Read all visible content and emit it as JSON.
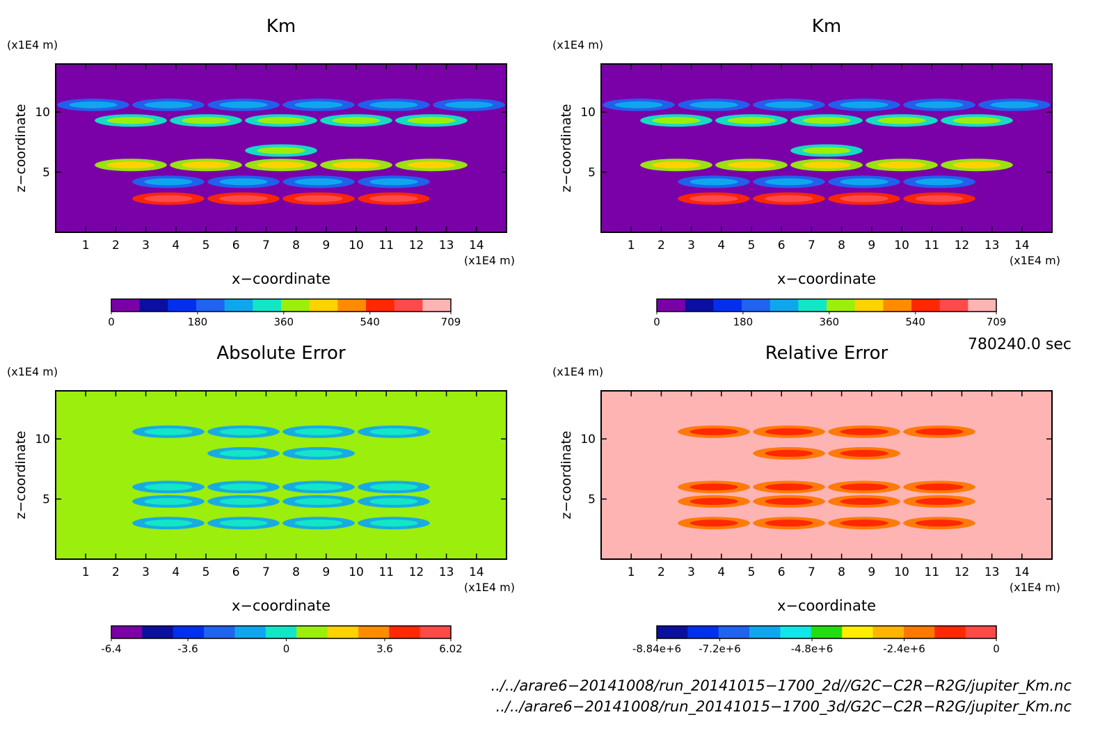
{
  "chart_data": [
    {
      "type": "heatmap",
      "title": "Km",
      "xlabel": "x−coordinate",
      "ylabel": "z−coordinate",
      "x_unit": "(x1E4 m)",
      "y_unit": "(x1E4 m)",
      "xlim": [
        0,
        15
      ],
      "ylim": [
        0,
        14
      ],
      "x_ticks": [
        1,
        2,
        3,
        4,
        5,
        6,
        7,
        8,
        9,
        10,
        11,
        12,
        13,
        14
      ],
      "y_ticks": [
        5,
        10
      ],
      "background": "#7a00a8",
      "bands": [
        {
          "z": 10.6,
          "level": 0.35,
          "coverage": 0.95
        },
        {
          "z": 9.3,
          "level": 0.55,
          "coverage": 0.85
        },
        {
          "z": 6.8,
          "level": 0.5,
          "coverage": 0.1
        },
        {
          "z": 5.6,
          "level": 0.6,
          "coverage": 0.8
        },
        {
          "z": 4.2,
          "level": 0.35,
          "coverage": 0.7
        },
        {
          "z": 2.8,
          "level": 0.9,
          "coverage": 0.6
        }
      ],
      "colorbar": {
        "ticks": [
          "0",
          "180",
          "360",
          "540",
          "709"
        ],
        "tick_values": [
          0,
          180,
          360,
          540,
          709
        ],
        "range": [
          0,
          709
        ],
        "colors": [
          "#7a00a8",
          "#0a0fa0",
          "#0030ee",
          "#1e64ee",
          "#10a6ee",
          "#12e6c6",
          "#9cee0c",
          "#ffd200",
          "#ff8c00",
          "#ff2800",
          "#ff4a4a",
          "#ffb4b4"
        ]
      }
    },
    {
      "type": "heatmap",
      "title": "Km",
      "xlabel": "x−coordinate",
      "ylabel": "z−coordinate",
      "x_unit": "(x1E4 m)",
      "y_unit": "(x1E4 m)",
      "xlim": [
        0,
        15
      ],
      "ylim": [
        0,
        14
      ],
      "x_ticks": [
        1,
        2,
        3,
        4,
        5,
        6,
        7,
        8,
        9,
        10,
        11,
        12,
        13,
        14
      ],
      "y_ticks": [
        5,
        10
      ],
      "background": "#7a00a8",
      "bands": [
        {
          "z": 10.6,
          "level": 0.35,
          "coverage": 0.95
        },
        {
          "z": 9.3,
          "level": 0.55,
          "coverage": 0.85
        },
        {
          "z": 6.8,
          "level": 0.5,
          "coverage": 0.1
        },
        {
          "z": 5.6,
          "level": 0.6,
          "coverage": 0.8
        },
        {
          "z": 4.2,
          "level": 0.35,
          "coverage": 0.7
        },
        {
          "z": 2.8,
          "level": 0.9,
          "coverage": 0.6
        }
      ],
      "colorbar": {
        "ticks": [
          "0",
          "180",
          "360",
          "540",
          "709"
        ],
        "tick_values": [
          0,
          180,
          360,
          540,
          709
        ],
        "range": [
          0,
          709
        ],
        "colors": [
          "#7a00a8",
          "#0a0fa0",
          "#0030ee",
          "#1e64ee",
          "#10a6ee",
          "#12e6c6",
          "#9cee0c",
          "#ffd200",
          "#ff8c00",
          "#ff2800",
          "#ff4a4a",
          "#ffb4b4"
        ]
      }
    },
    {
      "type": "heatmap",
      "title": "Absolute Error",
      "xlabel": "x−coordinate",
      "ylabel": "z−coordinate",
      "x_unit": "(x1E4 m)",
      "y_unit": "(x1E4 m)",
      "xlim": [
        0,
        15
      ],
      "ylim": [
        0,
        14
      ],
      "x_ticks": [
        1,
        2,
        3,
        4,
        5,
        6,
        7,
        8,
        9,
        10,
        11,
        12,
        13,
        14
      ],
      "y_ticks": [
        5,
        10
      ],
      "background": "#9cee0c",
      "bands": [
        {
          "z": 10.6,
          "level": 0.45,
          "coverage": 0.7
        },
        {
          "z": 8.8,
          "level": 0.45,
          "coverage": 0.4
        },
        {
          "z": 6.0,
          "level": 0.45,
          "coverage": 0.6
        },
        {
          "z": 4.8,
          "level": 0.45,
          "coverage": 0.7
        },
        {
          "z": 3.0,
          "level": 0.45,
          "coverage": 0.6
        }
      ],
      "colorbar": {
        "ticks": [
          "-6.4",
          "-3.6",
          "0",
          "3.6",
          "6.02"
        ],
        "tick_values": [
          -6.4,
          -3.6,
          0,
          3.6,
          6.02
        ],
        "range": [
          -6.4,
          6.02
        ],
        "colors": [
          "#7a00a8",
          "#0a0fa0",
          "#0030ee",
          "#1e64ee",
          "#10a6ee",
          "#12e6c6",
          "#9cee0c",
          "#ffd200",
          "#ff8c00",
          "#ff2800",
          "#ff4a4a"
        ]
      }
    },
    {
      "type": "heatmap",
      "title": "Relative Error",
      "xlabel": "x−coordinate",
      "ylabel": "z−coordinate",
      "x_unit": "(x1E4 m)",
      "y_unit": "(x1E4 m)",
      "xlim": [
        0,
        15
      ],
      "ylim": [
        0,
        14
      ],
      "x_ticks": [
        1,
        2,
        3,
        4,
        5,
        6,
        7,
        8,
        9,
        10,
        11,
        12,
        13,
        14
      ],
      "y_ticks": [
        5,
        10
      ],
      "background": "#ffb4b4",
      "bands": [
        {
          "z": 10.6,
          "level": 0.9,
          "coverage": 0.7
        },
        {
          "z": 8.8,
          "level": 0.9,
          "coverage": 0.4
        },
        {
          "z": 6.0,
          "level": 0.9,
          "coverage": 0.6
        },
        {
          "z": 4.8,
          "level": 0.9,
          "coverage": 0.7
        },
        {
          "z": 3.0,
          "level": 0.9,
          "coverage": 0.6
        }
      ],
      "colorbar": {
        "ticks": [
          "-8.84e+6",
          "-7.2e+6",
          "-4.8e+6",
          "-2.4e+6",
          "0"
        ],
        "tick_values": [
          -8840000.0,
          -7200000.0,
          -4800000.0,
          -2400000.0,
          0
        ],
        "range": [
          -8840000.0,
          0
        ],
        "colors": [
          "#0a0fa0",
          "#0030ee",
          "#1e64ee",
          "#10a6ee",
          "#12e6e6",
          "#22dd10",
          "#ffee00",
          "#ffb400",
          "#ff7800",
          "#ff2800",
          "#ff4a4a"
        ]
      }
    }
  ],
  "time_label": "780240.0 sec",
  "file_paths": [
    "../../arare6−20141008/run_20141015−1700_2d//G2C−C2R−R2G/jupiter_Km.nc",
    "../../arare6−20141008/run_20141015−1700_3d/G2C−C2R−R2G/jupiter_Km.nc"
  ]
}
